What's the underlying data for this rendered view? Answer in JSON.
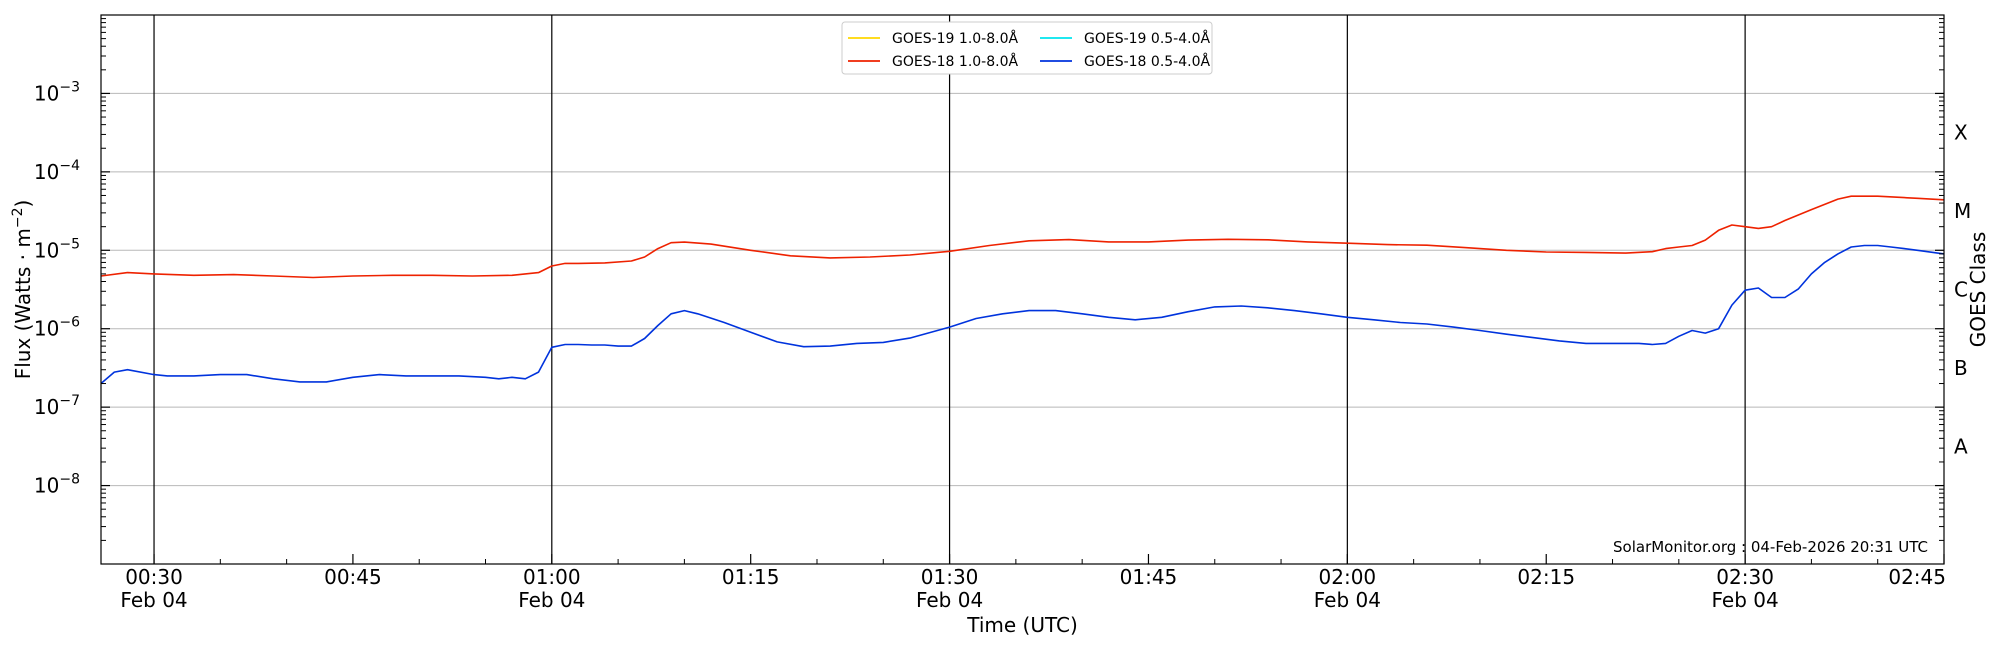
{
  "chart_data": {
    "type": "line",
    "ylabel": "Flux (Watts · m",
    "ylabel_sup": "−2",
    "ylabel_close": ")",
    "xlabel": "Time (UTC)",
    "right_label": "GOES Class",
    "yscale": "log",
    "ylim_exp": [
      -9,
      -2
    ],
    "xlim_min": [
      26,
      165
    ],
    "x_ticks": [
      {
        "min": 30,
        "label": "00:30",
        "sub": "Feb 04"
      },
      {
        "min": 45,
        "label": "00:45",
        "sub": ""
      },
      {
        "min": 60,
        "label": "01:00",
        "sub": "Feb 04"
      },
      {
        "min": 75,
        "label": "01:15",
        "sub": ""
      },
      {
        "min": 90,
        "label": "01:30",
        "sub": "Feb 04"
      },
      {
        "min": 105,
        "label": "01:45",
        "sub": ""
      },
      {
        "min": 120,
        "label": "02:00",
        "sub": "Feb 04"
      },
      {
        "min": 135,
        "label": "02:15",
        "sub": ""
      },
      {
        "min": 150,
        "label": "02:30",
        "sub": "Feb 04"
      },
      {
        "min": 165,
        "label": "02:45",
        "sub": ""
      }
    ],
    "y_ticks": [
      {
        "exp": -3,
        "base": "10",
        "sup": "−3"
      },
      {
        "exp": -4,
        "base": "10",
        "sup": "−4"
      },
      {
        "exp": -5,
        "base": "10",
        "sup": "−5"
      },
      {
        "exp": -6,
        "base": "10",
        "sup": "−6"
      },
      {
        "exp": -7,
        "base": "10",
        "sup": "−7"
      },
      {
        "exp": -8,
        "base": "10",
        "sup": "−8"
      }
    ],
    "classes": [
      {
        "label": "X",
        "exp": -3.5
      },
      {
        "label": "M",
        "exp": -4.5
      },
      {
        "label": "C",
        "exp": -5.5
      },
      {
        "label": "B",
        "exp": -6.5
      },
      {
        "label": "A",
        "exp": -7.5
      }
    ],
    "vlines_min": [
      30,
      60,
      90,
      120,
      150
    ],
    "legend": [
      {
        "name": "GOES-19 1.0-8.0Å",
        "color": "#ffd700"
      },
      {
        "name": "GOES-19 0.5-4.0Å",
        "color": "#00e5ee"
      },
      {
        "name": "GOES-18 1.0-8.0Å",
        "color": "#ee2200"
      },
      {
        "name": "GOES-18 0.5-4.0Å",
        "color": "#0033dd"
      }
    ],
    "legend_placement": "top-center",
    "grid": "horizontal",
    "series": [
      {
        "name": "GOES-18 1.0-8.0Å",
        "color": "#ee2200",
        "x": [
          26,
          28,
          30,
          33,
          36,
          39,
          42,
          45,
          48,
          51,
          54,
          57,
          59,
          60,
          61,
          62,
          64,
          66,
          67,
          68,
          69,
          70,
          72,
          75,
          78,
          81,
          84,
          87,
          90,
          93,
          96,
          99,
          102,
          105,
          108,
          111,
          114,
          117,
          120,
          123,
          126,
          129,
          132,
          135,
          138,
          141,
          143,
          144,
          145,
          146,
          147,
          148,
          149,
          150,
          151,
          152,
          153,
          155,
          157,
          158,
          160,
          162,
          163,
          165
        ],
        "y": [
          4.7e-06,
          5.2e-06,
          5e-06,
          4.8e-06,
          4.9e-06,
          4.7e-06,
          4.5e-06,
          4.7e-06,
          4.8e-06,
          4.8e-06,
          4.7e-06,
          4.8e-06,
          5.2e-06,
          6.3e-06,
          6.8e-06,
          6.8e-06,
          6.9e-06,
          7.3e-06,
          8.2e-06,
          1.05e-05,
          1.25e-05,
          1.27e-05,
          1.2e-05,
          1e-05,
          8.5e-06,
          8e-06,
          8.2e-06,
          8.7e-06,
          9.7e-06,
          1.15e-05,
          1.32e-05,
          1.37e-05,
          1.28e-05,
          1.28e-05,
          1.35e-05,
          1.38e-05,
          1.36e-05,
          1.28e-05,
          1.23e-05,
          1.18e-05,
          1.16e-05,
          1.08e-05,
          1e-05,
          9.5e-06,
          9.4e-06,
          9.2e-06,
          9.6e-06,
          1.05e-05,
          1.1e-05,
          1.15e-05,
          1.35e-05,
          1.8e-05,
          2.1e-05,
          2e-05,
          1.9e-05,
          2e-05,
          2.4e-05,
          3.3e-05,
          4.5e-05,
          4.9e-05,
          4.9e-05,
          4.7e-05,
          4.6e-05,
          4.4e-05
        ]
      },
      {
        "name": "GOES-18 0.5-4.0Å",
        "color": "#0033dd",
        "x": [
          26,
          27,
          28,
          30,
          31,
          33,
          35,
          37,
          39,
          41,
          43,
          45,
          47,
          49,
          51,
          53,
          55,
          56,
          57,
          58,
          59,
          60,
          61,
          62,
          63,
          64,
          65,
          66,
          67,
          68,
          69,
          70,
          71,
          73,
          75,
          77,
          79,
          81,
          83,
          85,
          87,
          90,
          92,
          94,
          96,
          98,
          100,
          102,
          104,
          106,
          108,
          110,
          112,
          114,
          116,
          118,
          120,
          122,
          124,
          126,
          128,
          130,
          132,
          134,
          136,
          138,
          140,
          142,
          143,
          144,
          145,
          146,
          147,
          148,
          149,
          150,
          151,
          152,
          153,
          154,
          155,
          156,
          157,
          158,
          159,
          160,
          161,
          162,
          163,
          165
        ],
        "y": [
          2e-07,
          2.8e-07,
          3e-07,
          2.6e-07,
          2.5e-07,
          2.5e-07,
          2.6e-07,
          2.6e-07,
          2.3e-07,
          2.1e-07,
          2.1e-07,
          2.4e-07,
          2.6e-07,
          2.5e-07,
          2.5e-07,
          2.5e-07,
          2.4e-07,
          2.3e-07,
          2.4e-07,
          2.3e-07,
          2.8e-07,
          5.8e-07,
          6.3e-07,
          6.3e-07,
          6.2e-07,
          6.2e-07,
          6e-07,
          6e-07,
          7.5e-07,
          1.1e-06,
          1.55e-06,
          1.7e-06,
          1.55e-06,
          1.2e-06,
          9e-07,
          6.8e-07,
          5.9e-07,
          6e-07,
          6.5e-07,
          6.7e-07,
          7.6e-07,
          1.05e-06,
          1.35e-06,
          1.55e-06,
          1.7e-06,
          1.7e-06,
          1.55e-06,
          1.4e-06,
          1.3e-06,
          1.4e-06,
          1.65e-06,
          1.9e-06,
          1.95e-06,
          1.85e-06,
          1.7e-06,
          1.55e-06,
          1.4e-06,
          1.3e-06,
          1.2e-06,
          1.15e-06,
          1.05e-06,
          9.5e-07,
          8.5e-07,
          7.7e-07,
          7e-07,
          6.5e-07,
          6.5e-07,
          6.5e-07,
          6.3e-07,
          6.5e-07,
          8e-07,
          9.5e-07,
          8.8e-07,
          1e-06,
          2e-06,
          3.1e-06,
          3.3e-06,
          2.5e-06,
          2.5e-06,
          3.2e-06,
          5e-06,
          7e-06,
          9e-06,
          1.1e-05,
          1.15e-05,
          1.15e-05,
          1.1e-05,
          1.05e-05,
          1e-05,
          9e-06
        ]
      }
    ],
    "credit": "SolarMonitor.org : 04-Feb-2026 20:31 UTC"
  }
}
